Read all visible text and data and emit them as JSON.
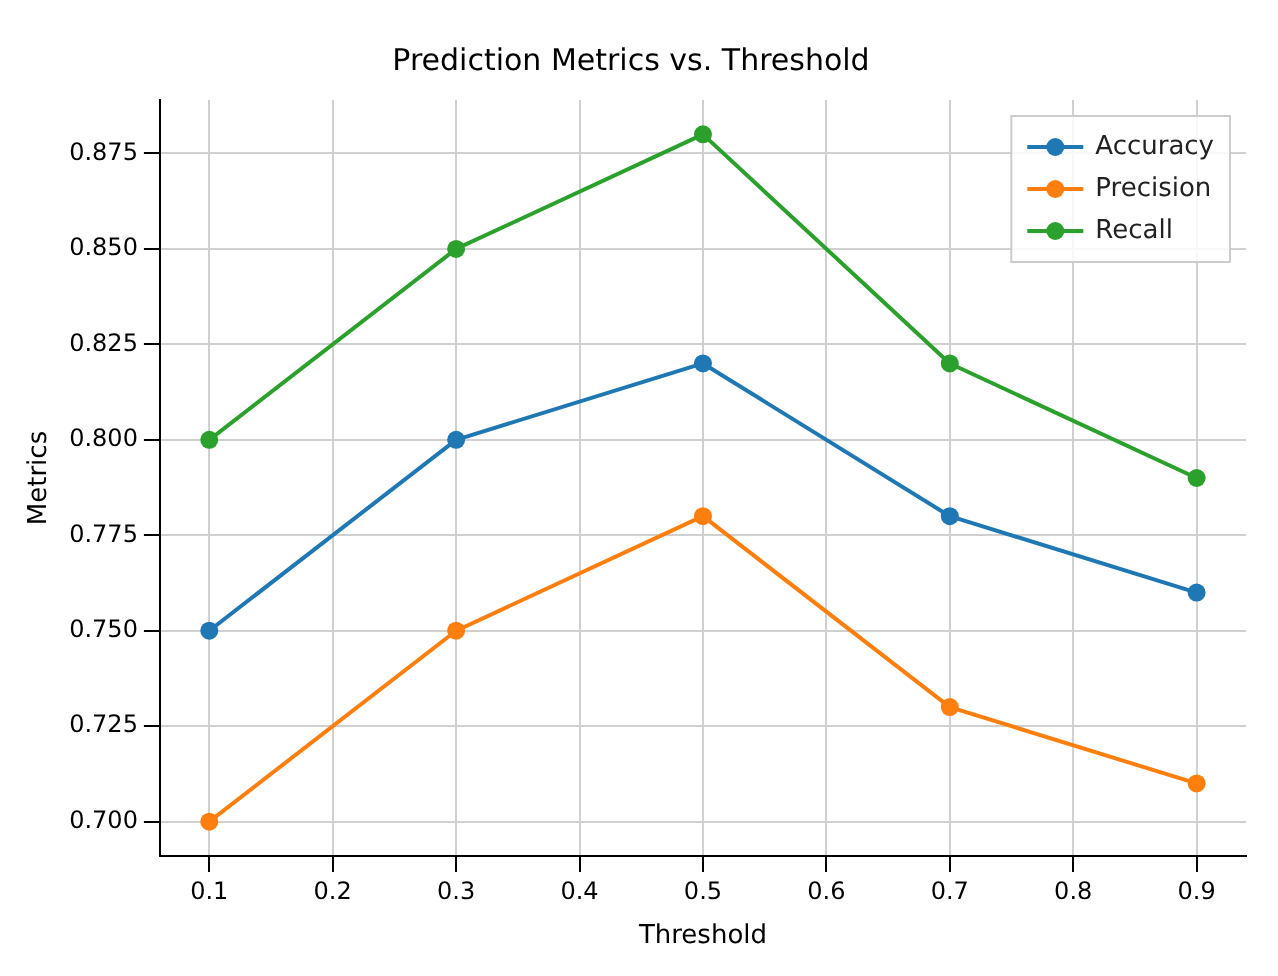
{
  "chart_data": {
    "type": "line",
    "title": "Prediction Metrics vs. Threshold",
    "xlabel": "Threshold",
    "ylabel": "Metrics",
    "x": [
      0.1,
      0.3,
      0.5,
      0.7,
      0.9
    ],
    "series": [
      {
        "name": "Accuracy",
        "color": "#1f77b4",
        "values": [
          0.75,
          0.8,
          0.82,
          0.78,
          0.76
        ]
      },
      {
        "name": "Precision",
        "color": "#ff7f0e",
        "values": [
          0.7,
          0.75,
          0.78,
          0.73,
          0.71
        ]
      },
      {
        "name": "Recall",
        "color": "#2ca02c",
        "values": [
          0.8,
          0.85,
          0.88,
          0.82,
          0.79
        ]
      }
    ],
    "xlim": [
      0.06,
      0.94
    ],
    "xticks": [
      0.1,
      0.2,
      0.3,
      0.4,
      0.5,
      0.6,
      0.7,
      0.8,
      0.9
    ],
    "ylim": [
      0.691,
      0.889
    ],
    "yticks": [
      {
        "value": 0.7,
        "label": "0.700"
      },
      {
        "value": 0.725,
        "label": "0.725"
      },
      {
        "value": 0.75,
        "label": "0.750"
      },
      {
        "value": 0.775,
        "label": "0.775"
      },
      {
        "value": 0.8,
        "label": "0.800"
      },
      {
        "value": 0.825,
        "label": "0.825"
      },
      {
        "value": 0.85,
        "label": "0.850"
      },
      {
        "value": 0.875,
        "label": "0.875"
      }
    ],
    "grid": true,
    "legend": "top right",
    "marker": "circle",
    "line_style": "solid"
  }
}
